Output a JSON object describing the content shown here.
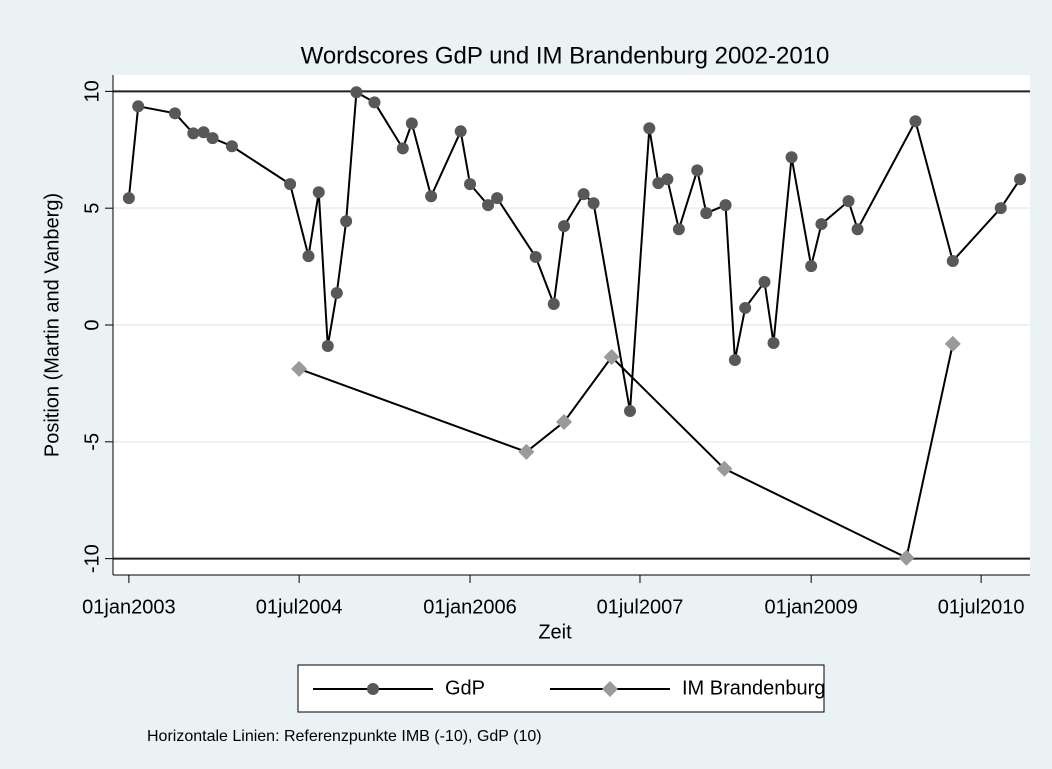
{
  "chart_data": {
    "type": "line",
    "title": "Wordscores GdP und IM Brandenburg 2002-2010",
    "x_label": "Zeit",
    "y_label": "Position (Martin and Vanberg)",
    "note": "Horizontale Linien: Referenzpunkte IMB (-10), GdP (10)",
    "xlim": [
      "2002-11-11",
      "2010-12-05"
    ],
    "xticks": [
      {
        "value": "2003-01-01",
        "label": "01jan2003"
      },
      {
        "value": "2004-07-01",
        "label": "01jul2004"
      },
      {
        "value": "2006-01-01",
        "label": "01jan2006"
      },
      {
        "value": "2007-07-01",
        "label": "01jul2007"
      },
      {
        "value": "2009-01-01",
        "label": "01jan2009"
      },
      {
        "value": "2010-07-01",
        "label": "01jul2010"
      }
    ],
    "ylim": [
      -10.7,
      10.7
    ],
    "yticks": [
      -10,
      -5,
      0,
      5,
      10
    ],
    "grid": true,
    "hlines": [
      10,
      -10
    ],
    "series": [
      {
        "name": "GdP",
        "color": "#585858",
        "marker": "circle",
        "x": [
          "2003-01-01",
          "2003-01-31",
          "2003-05-29",
          "2003-07-27",
          "2003-08-29",
          "2003-09-27",
          "2003-11-28",
          "2004-06-02",
          "2004-07-31",
          "2004-09-02",
          "2004-10-01",
          "2004-10-30",
          "2004-11-29",
          "2005-01-01",
          "2005-02-28",
          "2005-05-30",
          "2005-06-28",
          "2005-08-29",
          "2005-12-02",
          "2006-01-01",
          "2006-02-28",
          "2006-03-29",
          "2006-07-31",
          "2006-09-27",
          "2006-10-30",
          "2007-01-01",
          "2007-02-02",
          "2007-05-30",
          "2007-07-31",
          "2007-08-29",
          "2007-09-27",
          "2007-11-03",
          "2008-01-01",
          "2008-01-30",
          "2008-04-01",
          "2008-05-01",
          "2008-06-03",
          "2008-08-04",
          "2008-09-02",
          "2008-10-30",
          "2009-01-01",
          "2009-02-03",
          "2009-05-01",
          "2009-05-30",
          "2009-12-02",
          "2010-04-01",
          "2010-09-02",
          "2010-11-03"
        ],
        "values": [
          5.43,
          9.36,
          9.06,
          8.2,
          8.25,
          8.0,
          7.65,
          6.03,
          2.95,
          5.68,
          -0.9,
          1.37,
          4.44,
          9.96,
          9.53,
          7.56,
          8.63,
          5.51,
          8.29,
          6.03,
          5.13,
          5.43,
          2.91,
          0.9,
          4.23,
          5.6,
          5.21,
          -3.68,
          8.42,
          6.07,
          6.24,
          4.1,
          6.62,
          4.79,
          5.13,
          -1.5,
          0.73,
          1.84,
          -0.77,
          7.18,
          2.52,
          4.32,
          5.3,
          4.1,
          8.72,
          2.74,
          5.0,
          6.24
        ]
      },
      {
        "name": "IM Brandenburg",
        "color": "#9a9a9a",
        "marker": "diamond",
        "x": [
          "2004-07-01",
          "2006-07-01",
          "2006-10-30",
          "2007-04-01",
          "2008-03-28",
          "2009-11-03",
          "2010-04-01"
        ],
        "values": [
          -1.88,
          -5.43,
          -4.15,
          -1.37,
          -6.15,
          -9.96,
          -0.81
        ]
      }
    ]
  }
}
